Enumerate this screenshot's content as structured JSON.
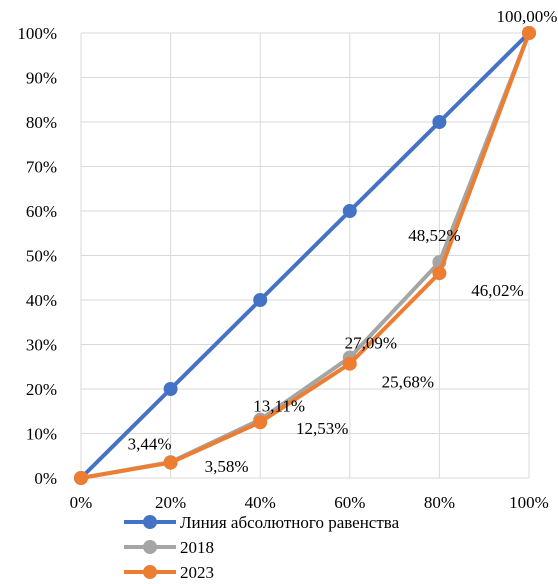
{
  "chart_data": {
    "type": "line",
    "x": [
      "0%",
      "20%",
      "40%",
      "60%",
      "80%",
      "100%"
    ],
    "y_ticks": [
      "0%",
      "10%",
      "20%",
      "30%",
      "40%",
      "50%",
      "60%",
      "70%",
      "80%",
      "90%",
      "100%"
    ],
    "ylim": [
      0,
      100
    ],
    "grid": true,
    "legend_position": "bottom",
    "series": [
      {
        "name": "Линия абсолютного равенства",
        "color": "#4472C4",
        "values": [
          0,
          20,
          40,
          60,
          80,
          100
        ],
        "labels": [
          "",
          "",
          "",
          "",
          "",
          ""
        ]
      },
      {
        "name": "2018",
        "color": "#A5A5A5",
        "values": [
          0,
          3.58,
          13.11,
          27.09,
          48.52,
          100
        ],
        "labels": [
          "",
          "3,58%",
          "13,11%",
          "27,09%",
          "48,52%",
          ""
        ]
      },
      {
        "name": "2023",
        "color": "#ED7D31",
        "values": [
          0,
          3.44,
          12.53,
          25.68,
          46.02,
          100
        ],
        "labels": [
          "",
          "3,44%",
          "12,53%",
          "25,68%",
          "46,02%",
          "100,00%"
        ]
      }
    ]
  }
}
